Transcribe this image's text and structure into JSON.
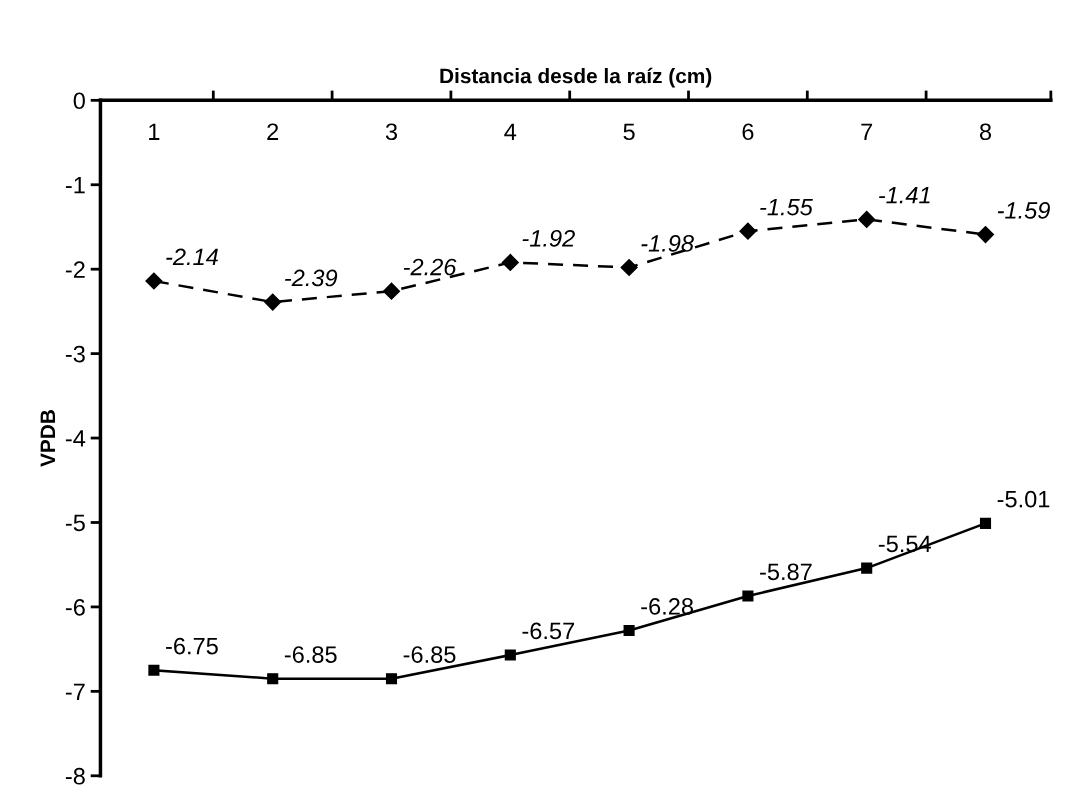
{
  "chart_data": {
    "type": "line",
    "xlabel": "Distancia desde la raíz (cm)",
    "ylabel": "VPDB",
    "categories": [
      "1",
      "2",
      "3",
      "4",
      "5",
      "6",
      "7",
      "8"
    ],
    "series": [
      {
        "color": "#000000",
        "values": [
          -2.14,
          -2.39,
          -2.26,
          -1.92,
          -1.98,
          -1.55,
          -1.41,
          -1.59
        ],
        "marker": "diamond",
        "line_style": "dashed"
      },
      {
        "color": "#000000",
        "values": [
          -6.75,
          -6.85,
          -6.85,
          -6.57,
          -6.28,
          -5.87,
          -5.54,
          -5.01
        ],
        "marker": "square",
        "line_style": "solid"
      }
    ],
    "ylim": [
      -8,
      0
    ],
    "yticks": [
      -8,
      -7,
      -6,
      -5,
      -4,
      -3,
      -2,
      -1,
      0
    ],
    "data_labels": true,
    "grid": false
  }
}
